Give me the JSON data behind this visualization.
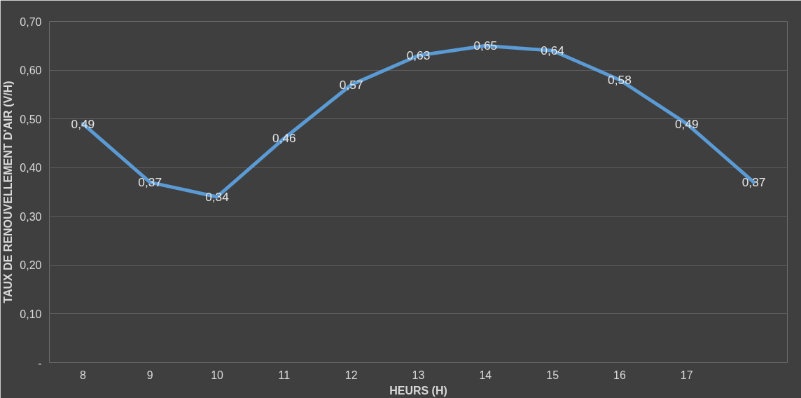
{
  "chart_data": {
    "type": "line",
    "xlabel": "HEURS (H)",
    "ylabel": "TAUX DE RENOUVELLEMENT D'AIR (V/H)",
    "categories": [
      "8",
      "9",
      "10",
      "11",
      "12",
      "13",
      "14",
      "15",
      "16",
      "17",
      null
    ],
    "series": [
      {
        "color": "#5b9bd5",
        "values": [
          0.49,
          0.37,
          0.34,
          0.46,
          0.57,
          0.63,
          0.65,
          0.64,
          0.58,
          0.49,
          0.37
        ],
        "value_labels": [
          "0,49",
          "0,37",
          "0,34",
          "0,46",
          "0,57",
          "0,63",
          "0,65",
          "0,64",
          "0,58",
          "0,49",
          "0,37"
        ]
      }
    ],
    "ylim": [
      0,
      0.7
    ],
    "yticks": [
      {
        "value": 0,
        "label": "-"
      },
      {
        "value": 0.1,
        "label": "0,10"
      },
      {
        "value": 0.2,
        "label": "0,20"
      },
      {
        "value": 0.3,
        "label": "0,30"
      },
      {
        "value": 0.4,
        "label": "0,40"
      },
      {
        "value": 0.5,
        "label": "0,50"
      },
      {
        "value": 0.6,
        "label": "0,60"
      },
      {
        "value": 0.7,
        "label": "0,70"
      }
    ],
    "grid": "y",
    "line_style": "solid"
  }
}
